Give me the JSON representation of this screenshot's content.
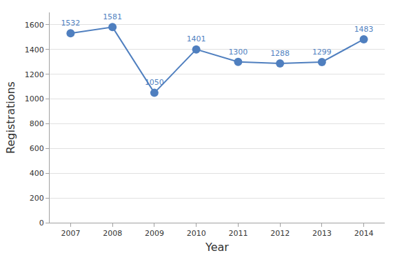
{
  "chart_data": {
    "type": "line",
    "x_label": "Year",
    "y_label": "Registrations",
    "categories": [
      "2007",
      "2008",
      "2009",
      "2010",
      "2011",
      "2012",
      "2013",
      "2014"
    ],
    "values": [
      1532,
      1581,
      1050,
      1401,
      1300,
      1288,
      1299,
      1483
    ],
    "color": "#4f7fbf",
    "marker": "circle",
    "ylim": [
      0,
      1700
    ],
    "yticks": [
      0,
      200,
      400,
      600,
      800,
      1000,
      1200,
      1400,
      1600
    ],
    "grid": true,
    "data_labels": true
  }
}
